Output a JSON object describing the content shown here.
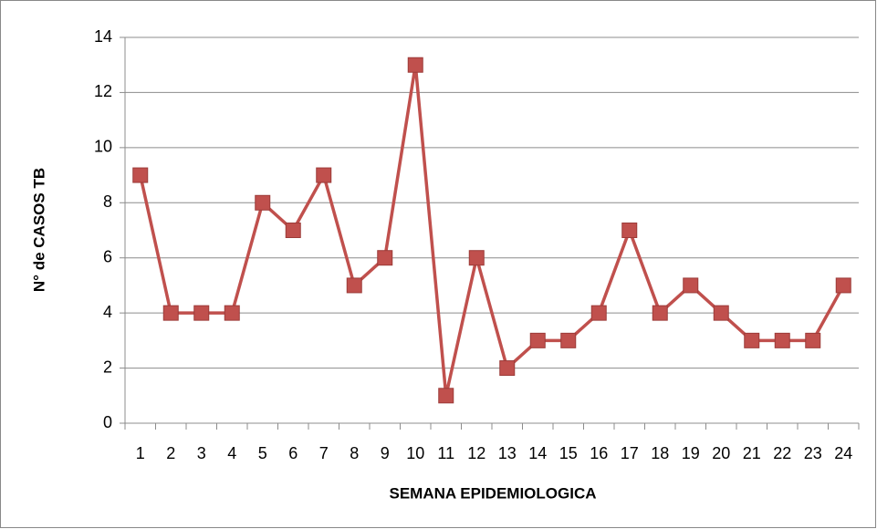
{
  "chart_data": {
    "type": "line",
    "x_label": "SEMANA EPIDEMIOLOGICA",
    "y_label": "N° de CASOS TB",
    "categories": [
      "1",
      "2",
      "3",
      "4",
      "5",
      "6",
      "7",
      "8",
      "9",
      "10",
      "11",
      "12",
      "13",
      "14",
      "15",
      "16",
      "17",
      "18",
      "19",
      "20",
      "21",
      "22",
      "23",
      "24"
    ],
    "series": [
      {
        "color": "#c0504d",
        "values": [
          9,
          4,
          4,
          4,
          8,
          7,
          9,
          5,
          6,
          13,
          1,
          6,
          2,
          3,
          3,
          4,
          7,
          4,
          5,
          4,
          3,
          3,
          3,
          5
        ]
      }
    ],
    "ylim": [
      0,
      14
    ],
    "yticks": [
      0,
      2,
      4,
      6,
      8,
      10,
      12,
      14
    ],
    "grid": true
  }
}
